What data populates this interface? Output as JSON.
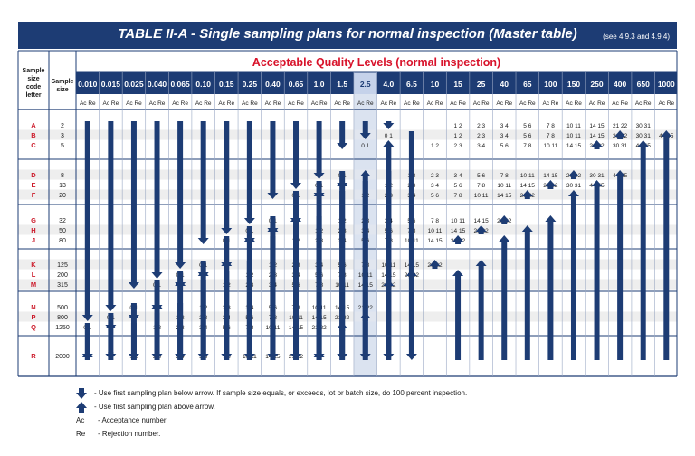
{
  "title": "TABLE II-A - Single sampling plans for normal inspection (Master table)",
  "title_ref": "(see 4.9.3 and 4.9.4)",
  "aql_header": "Acceptable Quality Levels (normal inspection)",
  "col_code_header": "Sample size code letter",
  "col_size_header": "Sample size",
  "aql_values": [
    "0.010",
    "0.015",
    "0.025",
    "0.040",
    "0.065",
    "0.10",
    "0.15",
    "0.25",
    "0.40",
    "0.65",
    "1.0",
    "1.5",
    "2.5",
    "4.0",
    "6.5",
    "10",
    "15",
    "25",
    "40",
    "65",
    "100",
    "150",
    "250",
    "400",
    "650",
    "1000"
  ],
  "highlight_index": 12,
  "subheader": "Ac Re",
  "rows": [
    {
      "code": "A",
      "size": "2"
    },
    {
      "code": "B",
      "size": "3"
    },
    {
      "code": "C",
      "size": "5"
    },
    {
      "code": "D",
      "size": "8"
    },
    {
      "code": "E",
      "size": "13"
    },
    {
      "code": "F",
      "size": "20"
    },
    {
      "code": "G",
      "size": "32"
    },
    {
      "code": "H",
      "size": "50"
    },
    {
      "code": "J",
      "size": "80"
    },
    {
      "code": "K",
      "size": "125"
    },
    {
      "code": "L",
      "size": "200"
    },
    {
      "code": "M",
      "size": "315"
    },
    {
      "code": "N",
      "size": "500"
    },
    {
      "code": "P",
      "size": "800"
    },
    {
      "code": "Q",
      "size": "1250"
    },
    {
      "code": "R",
      "size": "2000"
    }
  ],
  "ac_re_cells": [
    [
      0,
      16,
      "1 2"
    ],
    [
      0,
      17,
      "2 3"
    ],
    [
      0,
      18,
      "3 4"
    ],
    [
      0,
      19,
      "5 6"
    ],
    [
      0,
      20,
      "7 8"
    ],
    [
      0,
      21,
      "10 11"
    ],
    [
      0,
      22,
      "14 15"
    ],
    [
      0,
      23,
      "21 22"
    ],
    [
      0,
      24,
      "30 31"
    ],
    [
      1,
      13,
      "0 1"
    ],
    [
      1,
      16,
      "1 2"
    ],
    [
      1,
      17,
      "2 3"
    ],
    [
      1,
      18,
      "3 4"
    ],
    [
      1,
      19,
      "5 6"
    ],
    [
      1,
      20,
      "7 8"
    ],
    [
      1,
      21,
      "10 11"
    ],
    [
      1,
      22,
      "14 15"
    ],
    [
      1,
      23,
      "21 22"
    ],
    [
      1,
      24,
      "30 31"
    ],
    [
      1,
      25,
      "44 45"
    ],
    [
      2,
      12,
      "0 1"
    ],
    [
      2,
      15,
      "1 2"
    ],
    [
      2,
      16,
      "2 3"
    ],
    [
      2,
      17,
      "3 4"
    ],
    [
      2,
      18,
      "5 6"
    ],
    [
      2,
      19,
      "7 8"
    ],
    [
      2,
      20,
      "10 11"
    ],
    [
      2,
      21,
      "14 15"
    ],
    [
      2,
      22,
      "21 22"
    ],
    [
      2,
      23,
      "30 31"
    ],
    [
      2,
      24,
      "44 45"
    ],
    [
      3,
      11,
      "0 1"
    ],
    [
      3,
      14,
      "1 2"
    ],
    [
      3,
      15,
      "2 3"
    ],
    [
      3,
      16,
      "3 4"
    ],
    [
      3,
      17,
      "5 6"
    ],
    [
      3,
      18,
      "7 8"
    ],
    [
      3,
      19,
      "10 11"
    ],
    [
      3,
      20,
      "14 15"
    ],
    [
      3,
      21,
      "21 22"
    ],
    [
      3,
      22,
      "30 31"
    ],
    [
      3,
      23,
      "44 45"
    ],
    [
      4,
      10,
      "0 1"
    ],
    [
      4,
      13,
      "1 2"
    ],
    [
      4,
      14,
      "2 3"
    ],
    [
      4,
      15,
      "3 4"
    ],
    [
      4,
      16,
      "5 6"
    ],
    [
      4,
      17,
      "7 8"
    ],
    [
      4,
      18,
      "10 11"
    ],
    [
      4,
      19,
      "14 15"
    ],
    [
      4,
      20,
      "21 22"
    ],
    [
      4,
      21,
      "30 31"
    ],
    [
      4,
      22,
      "44 45"
    ],
    [
      5,
      9,
      "0 1"
    ],
    [
      5,
      12,
      "1 2"
    ],
    [
      5,
      13,
      "2 3"
    ],
    [
      5,
      14,
      "3 4"
    ],
    [
      5,
      15,
      "5 6"
    ],
    [
      5,
      16,
      "7 8"
    ],
    [
      5,
      17,
      "10 11"
    ],
    [
      5,
      18,
      "14 15"
    ],
    [
      5,
      19,
      "21 22"
    ],
    [
      6,
      8,
      "0 1"
    ],
    [
      6,
      11,
      "1 2"
    ],
    [
      6,
      12,
      "2 3"
    ],
    [
      6,
      13,
      "3 4"
    ],
    [
      6,
      14,
      "5 6"
    ],
    [
      6,
      15,
      "7 8"
    ],
    [
      6,
      16,
      "10 11"
    ],
    [
      6,
      17,
      "14 15"
    ],
    [
      6,
      18,
      "21 22"
    ],
    [
      7,
      7,
      "0 1"
    ],
    [
      7,
      10,
      "1 2"
    ],
    [
      7,
      11,
      "2 3"
    ],
    [
      7,
      12,
      "3 4"
    ],
    [
      7,
      13,
      "5 6"
    ],
    [
      7,
      14,
      "7 8"
    ],
    [
      7,
      15,
      "10 11"
    ],
    [
      7,
      16,
      "14 15"
    ],
    [
      7,
      17,
      "21 22"
    ],
    [
      8,
      6,
      "0 1"
    ],
    [
      8,
      9,
      "1 2"
    ],
    [
      8,
      10,
      "2 3"
    ],
    [
      8,
      11,
      "3 4"
    ],
    [
      8,
      12,
      "5 6"
    ],
    [
      8,
      13,
      "7 8"
    ],
    [
      8,
      14,
      "10 11"
    ],
    [
      8,
      15,
      "14 15"
    ],
    [
      8,
      16,
      "21 22"
    ],
    [
      9,
      5,
      "0 1"
    ],
    [
      9,
      8,
      "1 2"
    ],
    [
      9,
      9,
      "2 3"
    ],
    [
      9,
      10,
      "3 4"
    ],
    [
      9,
      11,
      "5 6"
    ],
    [
      9,
      12,
      "7 8"
    ],
    [
      9,
      13,
      "10 11"
    ],
    [
      9,
      14,
      "14 15"
    ],
    [
      9,
      15,
      "21 22"
    ],
    [
      10,
      4,
      "0 1"
    ],
    [
      10,
      7,
      "1 2"
    ],
    [
      10,
      8,
      "2 3"
    ],
    [
      10,
      9,
      "3 4"
    ],
    [
      10,
      10,
      "5 6"
    ],
    [
      10,
      11,
      "7 8"
    ],
    [
      10,
      12,
      "10 11"
    ],
    [
      10,
      13,
      "14 15"
    ],
    [
      10,
      14,
      "21 22"
    ],
    [
      11,
      3,
      "0 1"
    ],
    [
      11,
      6,
      "1 2"
    ],
    [
      11,
      7,
      "2 3"
    ],
    [
      11,
      8,
      "3 4"
    ],
    [
      11,
      9,
      "5 6"
    ],
    [
      11,
      10,
      "7 8"
    ],
    [
      11,
      11,
      "10 11"
    ],
    [
      11,
      12,
      "14 15"
    ],
    [
      11,
      13,
      "21 22"
    ],
    [
      12,
      2,
      "0 1"
    ],
    [
      12,
      5,
      "1 2"
    ],
    [
      12,
      6,
      "2 3"
    ],
    [
      12,
      7,
      "3 4"
    ],
    [
      12,
      8,
      "5 6"
    ],
    [
      12,
      9,
      "7 8"
    ],
    [
      12,
      10,
      "10 11"
    ],
    [
      12,
      11,
      "14 15"
    ],
    [
      12,
      12,
      "21 22"
    ],
    [
      13,
      1,
      "0 1"
    ],
    [
      13,
      4,
      "1 2"
    ],
    [
      13,
      5,
      "2 3"
    ],
    [
      13,
      6,
      "3 4"
    ],
    [
      13,
      7,
      "5 6"
    ],
    [
      13,
      8,
      "7 8"
    ],
    [
      13,
      9,
      "10 11"
    ],
    [
      13,
      10,
      "14 15"
    ],
    [
      13,
      11,
      "21 22"
    ],
    [
      14,
      0,
      "0 1"
    ],
    [
      14,
      3,
      "1 2"
    ],
    [
      14,
      4,
      "2 3"
    ],
    [
      14,
      5,
      "3 4"
    ],
    [
      14,
      6,
      "5 6"
    ],
    [
      14,
      7,
      "7 8"
    ],
    [
      14,
      8,
      "10 11"
    ],
    [
      14,
      9,
      "14 15"
    ],
    [
      14,
      10,
      "21 22"
    ],
    [
      15,
      2,
      "1 2"
    ],
    [
      15,
      3,
      "2 3"
    ],
    [
      15,
      4,
      "3 4"
    ],
    [
      15,
      5,
      "5 6"
    ],
    [
      15,
      6,
      "7 8"
    ],
    [
      15,
      7,
      "10 11"
    ],
    [
      15,
      8,
      "14 15"
    ],
    [
      15,
      9,
      "21 22"
    ]
  ],
  "down_arrows": [
    [
      0,
      0,
      13
    ],
    [
      1,
      0,
      12
    ],
    [
      2,
      0,
      11
    ],
    [
      3,
      0,
      10
    ],
    [
      4,
      0,
      9
    ],
    [
      5,
      0,
      8
    ],
    [
      6,
      0,
      7
    ],
    [
      7,
      0,
      6
    ],
    [
      8,
      0,
      5
    ],
    [
      9,
      0,
      4
    ],
    [
      10,
      0,
      3
    ],
    [
      11,
      0,
      2
    ],
    [
      12,
      0,
      1
    ],
    [
      13,
      0,
      0
    ],
    [
      14,
      1,
      15
    ],
    [
      13,
      3,
      15
    ],
    [
      12,
      4,
      15
    ],
    [
      11,
      5,
      15
    ],
    [
      10,
      6,
      15
    ],
    [
      9,
      7,
      15
    ],
    [
      8,
      8,
      15
    ],
    [
      7,
      9,
      15
    ],
    [
      6,
      10,
      15
    ],
    [
      5,
      11,
      15
    ],
    [
      4,
      12,
      15
    ],
    [
      3,
      13,
      15
    ],
    [
      2,
      14,
      15
    ],
    [
      1,
      15,
      15
    ],
    [
      11,
      3,
      4
    ],
    [
      10,
      4,
      5
    ],
    [
      9,
      5,
      6
    ],
    [
      8,
      6,
      7
    ],
    [
      7,
      7,
      8
    ],
    [
      6,
      8,
      9
    ],
    [
      5,
      9,
      10
    ],
    [
      4,
      10,
      11
    ],
    [
      3,
      11,
      12
    ],
    [
      2,
      12,
      13
    ],
    [
      1,
      13,
      14
    ],
    [
      0,
      14,
      15
    ]
  ],
  "up_arrows": [
    [
      0,
      15,
      15
    ],
    [
      1,
      14,
      15
    ],
    [
      2,
      13,
      15
    ],
    [
      3,
      12,
      15
    ],
    [
      4,
      11,
      15
    ],
    [
      5,
      10,
      15
    ],
    [
      6,
      9,
      15
    ],
    [
      7,
      8,
      15
    ],
    [
      8,
      7,
      15
    ],
    [
      9,
      6,
      15
    ],
    [
      10,
      5,
      15
    ],
    [
      11,
      4,
      15
    ],
    [
      12,
      3,
      15
    ],
    [
      13,
      2,
      15
    ],
    [
      25,
      1,
      15
    ],
    [
      24,
      2,
      15
    ],
    [
      23,
      3,
      15
    ],
    [
      22,
      4,
      15
    ],
    [
      21,
      5,
      15
    ],
    [
      20,
      6,
      15
    ],
    [
      19,
      7,
      15
    ],
    [
      18,
      8,
      15
    ],
    [
      17,
      9,
      15
    ],
    [
      16,
      10,
      15
    ],
    [
      13,
      11,
      11
    ],
    [
      14,
      10,
      10
    ],
    [
      15,
      9,
      9
    ],
    [
      16,
      8,
      8
    ],
    [
      17,
      7,
      7
    ],
    [
      18,
      6,
      6
    ],
    [
      19,
      5,
      5
    ],
    [
      20,
      4,
      4
    ],
    [
      21,
      3,
      3
    ],
    [
      22,
      2,
      2
    ],
    [
      23,
      1,
      1
    ],
    [
      12,
      13,
      13
    ],
    [
      11,
      14,
      14
    ],
    [
      10,
      15,
      15
    ]
  ],
  "legend": {
    "down": "- Use first sampling plan below arrow. If sample size equals, or exceeds, lot or batch size, do 100 percent inspection.",
    "up": "- Use first sampling plan above arrow.",
    "ac_key": "Ac",
    "ac": "- Acceptance number",
    "re_key": "Re",
    "re": "- Rejection number."
  },
  "colors": {
    "navy": "#1d3c74",
    "aql_red": "#d8122a",
    "letter_red": "#cc1b2b",
    "highlight": "#dbe3f0",
    "stripe": "#ececec"
  }
}
